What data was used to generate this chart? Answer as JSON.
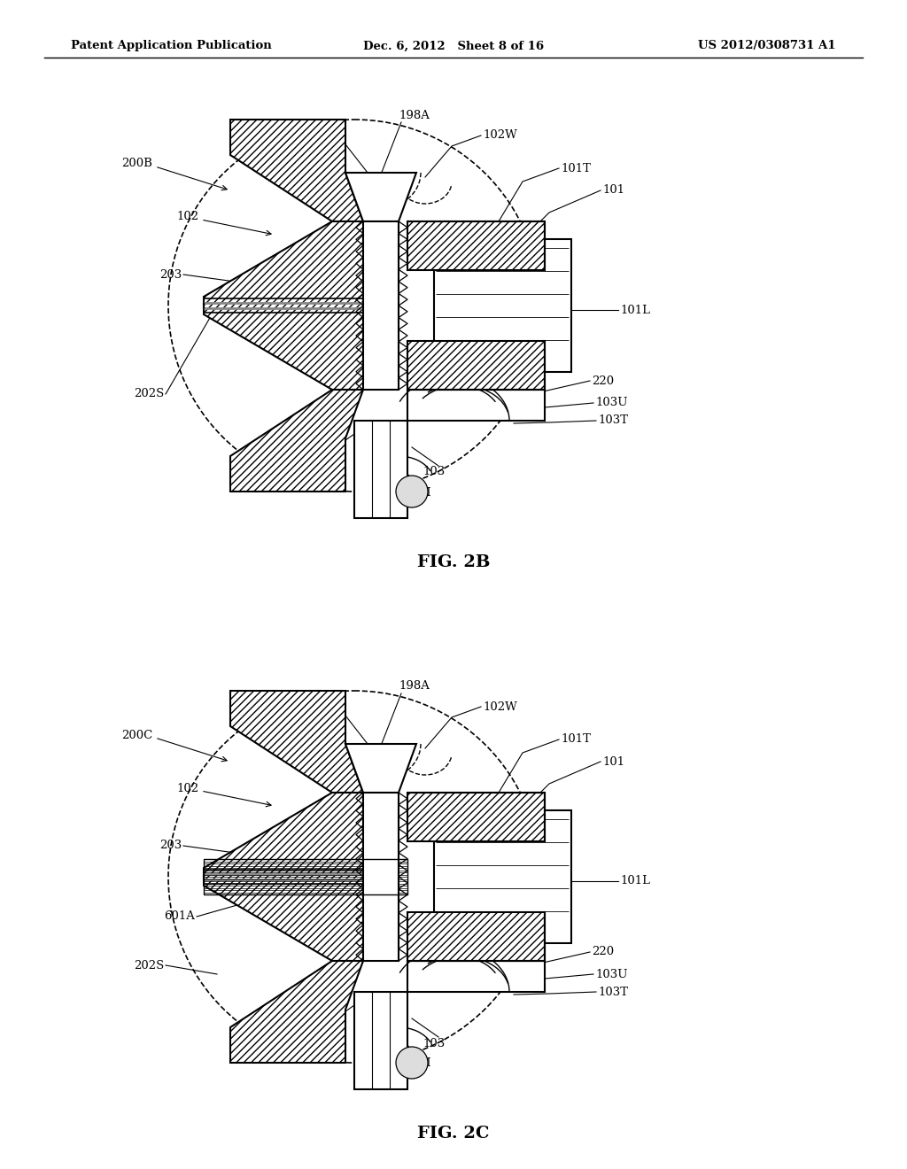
{
  "header_left": "Patent Application Publication",
  "header_mid": "Dec. 6, 2012   Sheet 8 of 16",
  "header_right": "US 2012/0308731 A1",
  "fig2b_label": "FIG. 2B",
  "fig2c_label": "FIG. 2C",
  "bg_color": "#ffffff",
  "lw_main": 1.5,
  "lw_thin": 0.8,
  "fs_label": 9.5,
  "fs_header": 9.5,
  "fs_caption": 14
}
